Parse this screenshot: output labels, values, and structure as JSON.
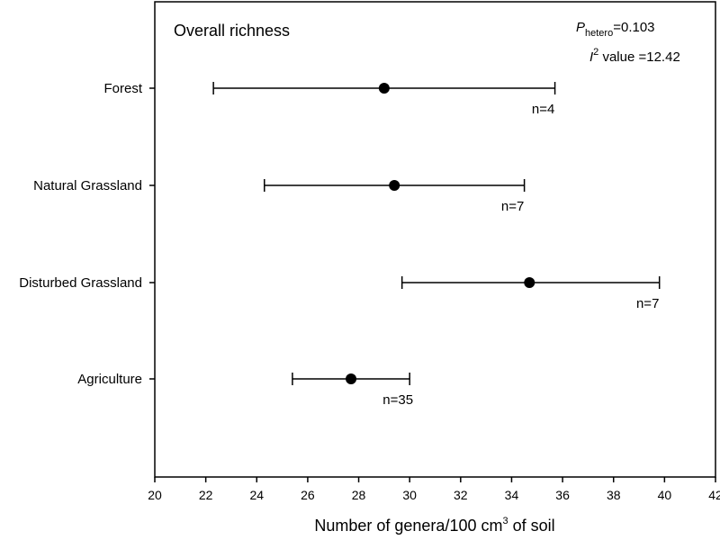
{
  "chart_data": {
    "type": "forest",
    "title": "Overall richness",
    "annotation": {
      "p_symbol": "P",
      "p_subscript": "hetero",
      "p_value_text": "=0.103",
      "i2_symbol": "I",
      "i2_superscript": "2",
      "i2_value_text": " value =12.42"
    },
    "xlabel": {
      "prefix": "Number of genera/100 cm",
      "superscript": "3",
      "suffix": " of soil"
    },
    "xlim": [
      20,
      42
    ],
    "xticks": [
      20,
      22,
      24,
      26,
      28,
      30,
      32,
      34,
      36,
      38,
      40,
      42
    ],
    "categories": [
      "Forest",
      "Natural Grassland",
      "Disturbed Grassland",
      "Agriculture"
    ],
    "estimates": [
      29.0,
      29.4,
      34.7,
      27.7
    ],
    "ci_low": [
      22.3,
      24.3,
      29.7,
      25.4
    ],
    "ci_high": [
      35.7,
      34.5,
      39.8,
      30.0
    ],
    "n_labels": [
      "n=4",
      "n=7",
      "n=7",
      "n=35"
    ],
    "grid": false,
    "marker_color": "#000000"
  }
}
